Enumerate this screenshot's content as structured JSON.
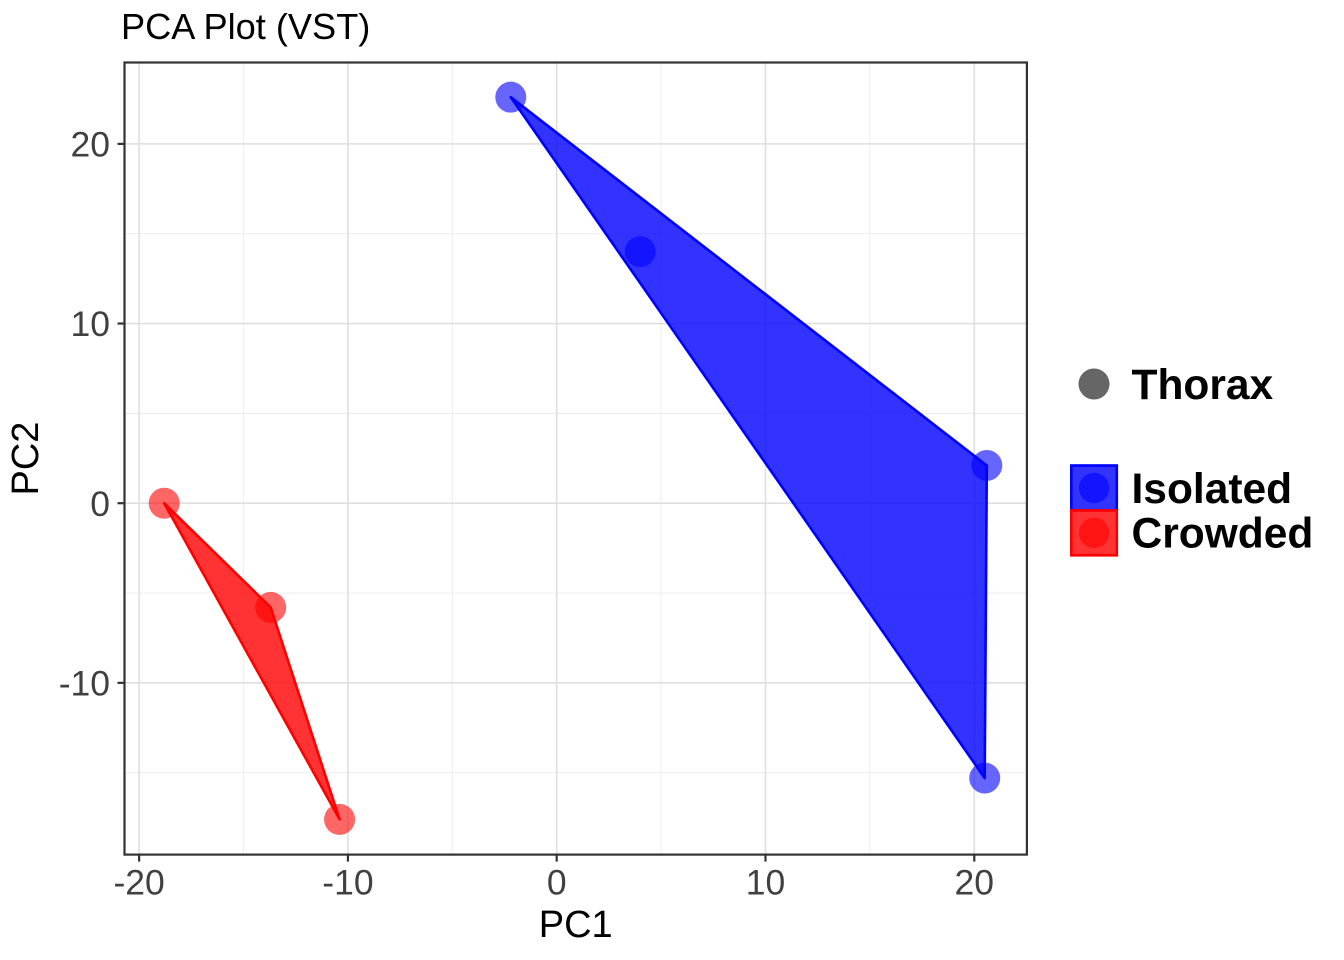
{
  "figure": {
    "background": "#ffffff"
  },
  "chart_data": {
    "type": "scatter",
    "title": "PCA Plot (VST)",
    "xlabel": "PC1",
    "ylabel": "PC2",
    "xlim": [
      -20.7,
      22.52
    ],
    "ylim": [
      -19.56,
      24.53
    ],
    "x_major_ticks": [
      -20,
      -10,
      0,
      10,
      20
    ],
    "x_minor_ticks": [
      -15,
      -5,
      5,
      15
    ],
    "y_major_ticks": [
      -10,
      0,
      10,
      20
    ],
    "y_minor_ticks": [
      -15,
      -5,
      5,
      15
    ],
    "x_tick_labels": [
      "-20",
      "-10",
      "0",
      "10",
      "20"
    ],
    "y_tick_labels": [
      "-10",
      "0",
      "10",
      "20"
    ],
    "grid": true,
    "legend_position": "right",
    "point_alpha": 0.6,
    "fill_alpha": 0.8,
    "series": [
      {
        "name": "Isolated",
        "color": "#0000FF",
        "points": [
          [
            -2.2,
            22.6
          ],
          [
            4.0,
            14.0
          ],
          [
            20.6,
            2.1
          ],
          [
            20.5,
            -15.3
          ]
        ],
        "hull": [
          [
            -2.2,
            22.6
          ],
          [
            20.6,
            2.1
          ],
          [
            20.5,
            -15.3
          ]
        ]
      },
      {
        "name": "Crowded",
        "color": "#FF0000",
        "points": [
          [
            -18.8,
            0.0
          ],
          [
            -13.7,
            -5.8
          ],
          [
            -10.4,
            -17.6
          ]
        ],
        "hull": [
          [
            -18.8,
            0.0
          ],
          [
            -13.7,
            -5.8
          ],
          [
            -10.4,
            -17.6
          ]
        ]
      }
    ],
    "shape_legend": {
      "label": "Thorax",
      "color": "#666666"
    },
    "colors": {
      "panel_border": "#333333",
      "tick_mark": "#333333",
      "tick_label": "#404040",
      "axis_title": "#000000",
      "title": "#000000",
      "legend_text": "#000000",
      "grid_major": "#DFDFDF",
      "grid_minor": "#ECECEC",
      "panel_background": "#FFFFFF"
    }
  }
}
